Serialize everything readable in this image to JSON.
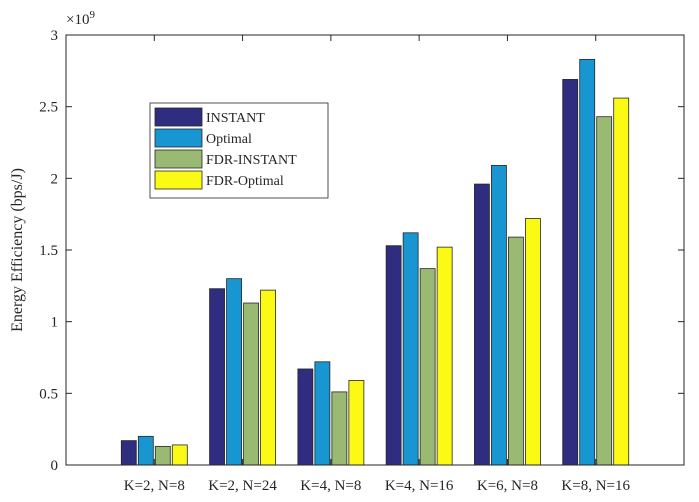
{
  "chart_data": {
    "type": "bar",
    "title": "",
    "xlabel": "",
    "ylabel": "Energy Efficiency (bps/J)",
    "y_exponent_base": "×10",
    "y_exponent_power": "9",
    "ylim": [
      0,
      3
    ],
    "yticks": [
      0,
      0.5,
      1,
      1.5,
      2,
      2.5,
      3
    ],
    "ytick_labels": [
      "0",
      "0.5",
      "1",
      "1.5",
      "2",
      "2.5",
      "3"
    ],
    "grid": false,
    "legend_position": "top-left",
    "categories": [
      "K=2, N=8",
      "K=2, N=24",
      "K=4, N=8",
      "K=4, N=16",
      "K=6, N=8",
      "K=8, N=16"
    ],
    "series": [
      {
        "name": "INSTANT",
        "color": "#2e2d7f",
        "values": [
          0.17,
          1.23,
          0.67,
          1.53,
          1.96,
          2.69
        ]
      },
      {
        "name": "Optimal",
        "color": "#1796d2",
        "values": [
          0.2,
          1.3,
          0.72,
          1.62,
          2.09,
          2.83
        ]
      },
      {
        "name": "FDR-INSTANT",
        "color": "#9ab972",
        "values": [
          0.13,
          1.13,
          0.51,
          1.37,
          1.59,
          2.43
        ]
      },
      {
        "name": "FDR-Optimal",
        "color": "#fafa14",
        "values": [
          0.14,
          1.22,
          0.59,
          1.52,
          1.72,
          2.56
        ]
      }
    ]
  }
}
